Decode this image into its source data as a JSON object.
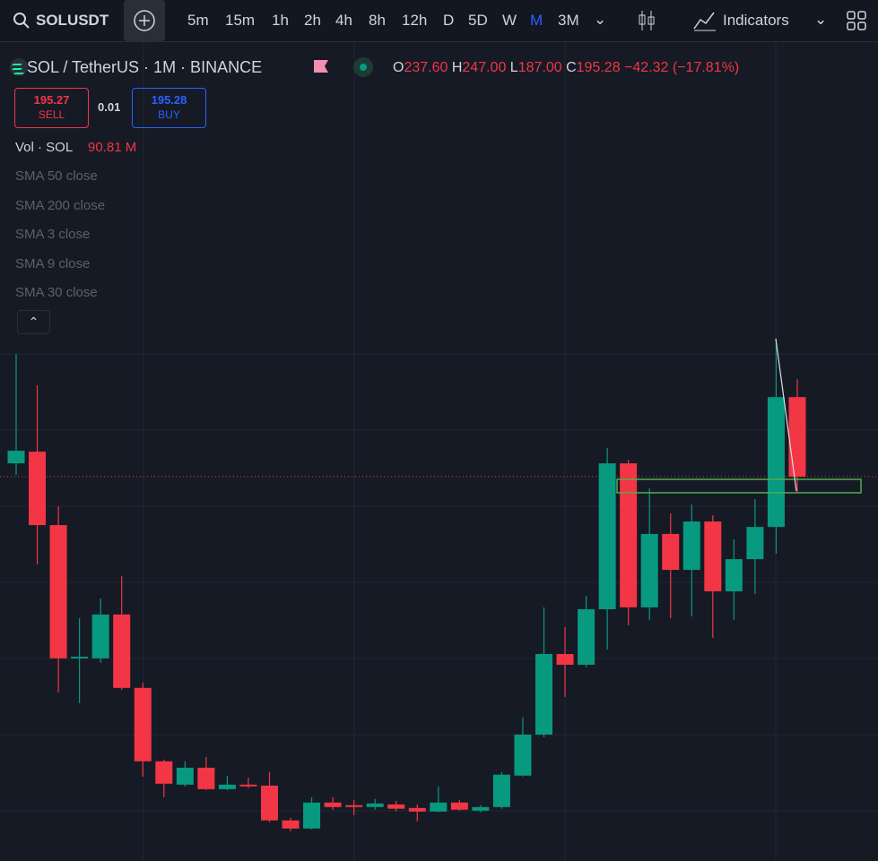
{
  "toolbar": {
    "symbol": "SOLUSDT",
    "intervals": [
      "5m",
      "15m",
      "1h",
      "2h",
      "4h",
      "8h",
      "12h",
      "D",
      "5D",
      "W",
      "M",
      "3M"
    ],
    "active_interval": 10,
    "indicators": "Indicators"
  },
  "legend": {
    "title": "SOL / TetherUS · 1M · BINANCE",
    "o_label": "O",
    "o": "237.60",
    "h_label": "H",
    "h": "247.00",
    "l_label": "L",
    "l": "187.00",
    "c_label": "C",
    "c": "195.28",
    "change": "−42.32 (−17.81%)",
    "sell_price": "195.27",
    "sell": "SELL",
    "spread": "0.01",
    "buy_price": "195.28",
    "buy": "BUY",
    "volume_label": "Vol · SOL",
    "volume": "90.81 M",
    "studies": [
      "SMA 50 close",
      "SMA 200 close",
      "SMA 3 close",
      "SMA 9 close",
      "SMA 30 close"
    ]
  },
  "chart_data": {
    "type": "candlestick",
    "up_color": "#089981",
    "down_color": "#f23645",
    "ylim": [
      -6,
      420
    ],
    "open": [
      202.4,
      208.6,
      169.6,
      98.8,
      98.8,
      122.1,
      83.1,
      44.1,
      31.7,
      40.7,
      29.3,
      31.7,
      31.2,
      12.7,
      8.4,
      22.2,
      20.8,
      19.8,
      21.2,
      19.3,
      17.4,
      22.2,
      17.9,
      19.8,
      36.5,
      58.3,
      101.1,
      95.4,
      124.9,
      202.4,
      125.9,
      164.9,
      145.8,
      171.5,
      134.4,
      151.5,
      168.6,
      237.6
    ],
    "high": [
      260.4,
      243.8,
      179.6,
      120.1,
      130.6,
      142.5,
      85.9,
      45.0,
      44.1,
      46.4,
      36.5,
      35.5,
      38.4,
      14.1,
      25.0,
      25.0,
      23.6,
      24.1,
      23.1,
      21.2,
      30.8,
      23.6,
      20.8,
      38.4,
      67.4,
      125.9,
      115.4,
      132.0,
      210.5,
      204.3,
      189.1,
      175.8,
      180.5,
      174.8,
      162.0,
      183.4,
      268.5,
      247
    ],
    "low": [
      196.2,
      148.7,
      80.7,
      75.0,
      96.4,
      82.1,
      36.0,
      25.0,
      30.8,
      28.8,
      28.8,
      29.8,
      11.7,
      7.0,
      7.9,
      18.4,
      15.5,
      18.4,
      17.4,
      12.2,
      17.0,
      17.9,
      17.0,
      18.9,
      36.0,
      56.9,
      78.3,
      94.0,
      103.5,
      116.3,
      119.2,
      120.1,
      121.1,
      109.7,
      119.2,
      133.0,
      154.4,
      187
    ],
    "close": [
      209.1,
      169.6,
      98.8,
      99.7,
      122.1,
      83.1,
      44.1,
      32.2,
      40.7,
      29.3,
      31.7,
      30.8,
      12.7,
      8.4,
      22.2,
      19.8,
      19.8,
      21.7,
      18.9,
      17.4,
      22.2,
      18.4,
      19.8,
      37.0,
      58.3,
      101.1,
      95.4,
      124.9,
      202.4,
      125.9,
      164.9,
      145.8,
      171.5,
      134.4,
      151.5,
      168.6,
      237.6,
      195.28
    ]
  }
}
